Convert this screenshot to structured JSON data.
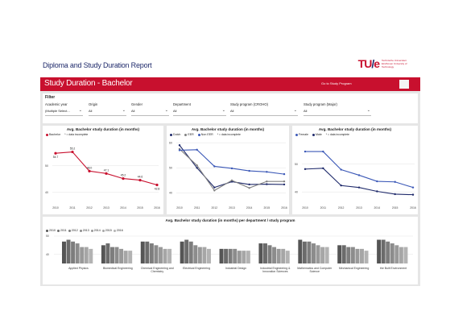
{
  "header": {
    "title": "Diploma and Study Duration Report",
    "logo_mark": "TU/e",
    "logo_text": "Technische Universiteit Eindhoven University of Technology"
  },
  "banner": {
    "title": "Study Duration - Bachelor",
    "link": "Go to Study Program"
  },
  "filter": {
    "title": "Filter",
    "fields": [
      {
        "label": "Academic year",
        "value": "(Multiple Select..."
      },
      {
        "label": "Origin",
        "value": "All"
      },
      {
        "label": "Gender",
        "value": "All"
      },
      {
        "label": "Department",
        "value": "All"
      },
      {
        "label": "Study program (CROHO)",
        "value": "All"
      },
      {
        "label": "Study program (Major)",
        "value": "All"
      }
    ]
  },
  "colors": {
    "accent": "#c8102e",
    "navy": "#1f2a6b",
    "mid_blue": "#3b58b7",
    "grey": "#9a9a9a",
    "bar_grey": "#8c8c8c"
  },
  "chart_data": [
    {
      "type": "line",
      "title": "Avg. Bachelor study duration (in months)",
      "x": [
        "2010",
        "2011",
        "2012",
        "2013",
        "2014",
        "2015",
        "2016"
      ],
      "y_ticks": [
        "50",
        "40"
      ],
      "note": "* = data incomplete",
      "series": [
        {
          "name": "Bachelor",
          "values": [
            54.7,
            55.2,
            48.0,
            47.1,
            45.2,
            44.6,
            42.8
          ],
          "labels": [
            "54.7",
            "55.2",
            "48.0",
            "47.1",
            "45.2",
            "44.6",
            "42.8"
          ],
          "color": "#c8102e"
        }
      ]
    },
    {
      "type": "line",
      "title": "Avg. Bachelor study duration (in months)",
      "x": [
        "2010",
        "2011",
        "2012",
        "2013",
        "2014",
        "2015",
        "2016"
      ],
      "y_ticks": [
        "60",
        "50",
        "40"
      ],
      "note": "* = data incomplete",
      "series": [
        {
          "name": "Dutch",
          "values": [
            59.0,
            50.0,
            42.2,
            44.5,
            43.4,
            43.5,
            43.4
          ],
          "color": "#1f2a6b"
        },
        {
          "name": "EER",
          "values": [
            57.5,
            51.0,
            41.0,
            45.0,
            42.0,
            44.6,
            44.6
          ],
          "color": "#808080"
        },
        {
          "name": "Non EER",
          "values": [
            57.0,
            57.2,
            50.6,
            49.8,
            48.8,
            48.4,
            47.5
          ],
          "color": "#3b58b7"
        }
      ]
    },
    {
      "type": "line",
      "title": "Avg. Bachelor study duration (in months)",
      "x": [
        "2010",
        "2011",
        "2012",
        "2013",
        "2014",
        "2015",
        "2016"
      ],
      "y_ticks": [
        "50",
        "40"
      ],
      "note": "* = data incomplete",
      "series": [
        {
          "name": "Female",
          "values": [
            54.5,
            54.5,
            48.0,
            46.0,
            43.8,
            43.6,
            41.6
          ],
          "color": "#3b58b7"
        },
        {
          "name": "Male",
          "values": [
            48.2,
            48.5,
            42.3,
            41.6,
            40.2,
            39.2,
            39.0
          ],
          "color": "#1f2a6b"
        }
      ]
    },
    {
      "type": "bar",
      "title": "Avg. Bachelor study duration (in months) per department / study program",
      "y_ticks": [
        "50",
        "40"
      ],
      "series_names": [
        "2010",
        "2011",
        "2012",
        "2013",
        "2014",
        "2015",
        "2016"
      ],
      "categories": [
        "Applied Physics",
        "Biomedical Engineering",
        "Chemical Engineering and Chemistry",
        "Electrical Engineering",
        "Industrial Design",
        "Industrial Engineering & Innovation Sciences",
        "Mathematics and Computer Science",
        "Mechanical Engineering",
        "the Built Environment"
      ],
      "values": [
        [
          47,
          48,
          47,
          46,
          44,
          44,
          43
        ],
        [
          45,
          46,
          44,
          44,
          43,
          42,
          42
        ],
        [
          47,
          47,
          46,
          45,
          44,
          43,
          43
        ],
        [
          47,
          48,
          47,
          45,
          44,
          44,
          43
        ],
        [
          43,
          43,
          43,
          43,
          42,
          42,
          42
        ],
        [
          46,
          46,
          45,
          44,
          43,
          43,
          42
        ],
        [
          48,
          47,
          47,
          46,
          45,
          44,
          44
        ],
        [
          45,
          45,
          44,
          44,
          43,
          43,
          42
        ],
        [
          48,
          48,
          47,
          46,
          45,
          44,
          44
        ]
      ]
    }
  ]
}
